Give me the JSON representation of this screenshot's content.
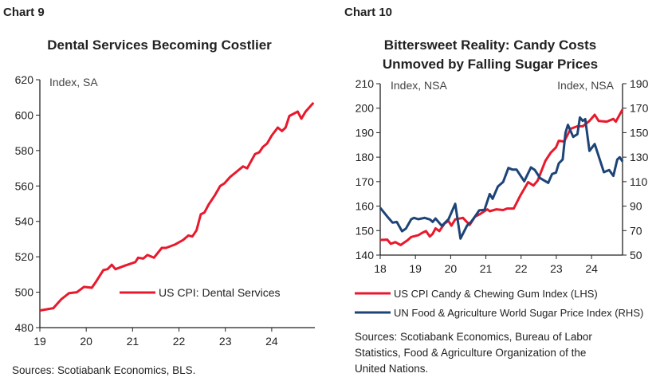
{
  "chart_data": [
    {
      "type": "line",
      "label": "Chart 9",
      "title": "Dental Services Becoming Costlier",
      "ylabel": "Index, SA",
      "ylim": [
        480,
        620
      ],
      "yticks": [
        "480",
        "500",
        "520",
        "540",
        "560",
        "580",
        "600",
        "620"
      ],
      "xlim": [
        19,
        24.93
      ],
      "xticks": [
        "19",
        "20",
        "21",
        "22",
        "23",
        "24"
      ],
      "grid": false,
      "legend_position": "center-right",
      "source": "Sources: Scotiabank Economics, BLS.",
      "series": [
        {
          "name": "US CPI: Dental Services",
          "color": "#e8192c",
          "x": [
            19.0,
            19.29,
            19.46,
            19.63,
            19.8,
            19.95,
            20.12,
            20.2,
            20.37,
            20.46,
            20.55,
            20.63,
            20.83,
            21.06,
            21.12,
            21.23,
            21.32,
            21.46,
            21.63,
            21.72,
            21.92,
            22.09,
            22.2,
            22.29,
            22.38,
            22.47,
            22.55,
            22.64,
            22.78,
            22.89,
            22.98,
            23.1,
            23.24,
            23.38,
            23.47,
            23.64,
            23.73,
            23.81,
            23.9,
            24.0,
            24.13,
            24.22,
            24.3,
            24.38,
            24.56,
            24.64,
            24.73,
            24.9
          ],
          "y": [
            489.7,
            491,
            496,
            499.5,
            500,
            503,
            502.5,
            505.5,
            512.5,
            513,
            515.5,
            513,
            515,
            517,
            519.5,
            519,
            521,
            519.5,
            525,
            525,
            527,
            529.5,
            532,
            531.5,
            535,
            544,
            545,
            549.5,
            555,
            560,
            561.5,
            565,
            568,
            571,
            570,
            578,
            579,
            582,
            584,
            588.5,
            593,
            591,
            593,
            599.5,
            602,
            598,
            602,
            607
          ]
        }
      ]
    },
    {
      "type": "line",
      "label": "Chart 10",
      "title": [
        "Bittersweet Reality: Candy Costs",
        "Unmoved by Falling Sugar Prices"
      ],
      "ylabel": "Index, NSA",
      "y2label": "Index, NSA",
      "ylim": [
        140,
        210
      ],
      "yticks": [
        "140",
        "150",
        "160",
        "170",
        "180",
        "190",
        "200",
        "210"
      ],
      "y2lim": [
        50,
        190
      ],
      "y2ticks": [
        "50",
        "70",
        "90",
        "110",
        "130",
        "150",
        "170",
        "190"
      ],
      "xlim": [
        18,
        24.88
      ],
      "xticks": [
        "18",
        "19",
        "20",
        "21",
        "22",
        "23",
        "24"
      ],
      "grid": false,
      "legend_position": "bottom",
      "source": [
        "Sources: Scotiabank Economics, Bureau of Labor",
        "Statistics, Food & Agriculture Organization of the",
        "United Nations."
      ],
      "series": [
        {
          "name": "US CPI Candy & Chewing Gum Index (LHS)",
          "color": "#e8192c",
          "axis": "left",
          "x": [
            18.0,
            18.2,
            18.3,
            18.43,
            18.58,
            18.77,
            18.88,
            19.08,
            19.19,
            19.3,
            19.41,
            19.49,
            19.57,
            19.68,
            19.83,
            19.94,
            20.02,
            20.13,
            20.35,
            20.54,
            20.69,
            20.84,
            21.04,
            21.11,
            21.3,
            21.49,
            21.6,
            21.79,
            21.98,
            22.2,
            22.35,
            22.47,
            22.69,
            22.84,
            22.99,
            23.07,
            23.22,
            23.41,
            23.6,
            23.75,
            23.94,
            24.09,
            24.2,
            24.43,
            24.62,
            24.69,
            24.88
          ],
          "y": [
            146.2,
            146.3,
            144.6,
            145.3,
            144.1,
            146,
            147.4,
            148.1,
            149.1,
            149.8,
            147.6,
            148.7,
            150.9,
            149.8,
            153,
            153.9,
            152,
            154.6,
            155.2,
            152.3,
            155.7,
            156.8,
            158.7,
            157.9,
            158.7,
            158.4,
            159,
            159,
            164.4,
            169.8,
            168.4,
            170.4,
            178.5,
            181.8,
            184,
            186.7,
            186.4,
            191.6,
            192.6,
            192.6,
            194.8,
            197.3,
            194.8,
            194.5,
            195.6,
            194.5,
            199.5
          ]
        },
        {
          "name": "UN Food & Agriculture World Sugar Price Index (RHS)",
          "color": "#1d4477",
          "axis": "right",
          "x": [
            18.0,
            18.2,
            18.35,
            18.47,
            18.62,
            18.73,
            18.88,
            18.96,
            19.08,
            19.26,
            19.41,
            19.49,
            19.57,
            19.75,
            19.94,
            20.13,
            20.28,
            20.47,
            20.58,
            20.69,
            20.81,
            20.96,
            21.11,
            21.19,
            21.34,
            21.49,
            21.64,
            21.75,
            21.87,
            22.09,
            22.28,
            22.39,
            22.54,
            22.77,
            22.88,
            22.99,
            23.07,
            23.18,
            23.26,
            23.33,
            23.48,
            23.6,
            23.67,
            23.75,
            23.82,
            23.94,
            24.09,
            24.35,
            24.5,
            24.62,
            24.73,
            24.8,
            24.88
          ],
          "y": [
            88.6,
            81.5,
            76.5,
            77.1,
            69.5,
            71.7,
            79.3,
            80.4,
            79.3,
            80.4,
            79.1,
            77.1,
            79.9,
            73.9,
            79.3,
            91.9,
            63.5,
            74.3,
            77.1,
            81.5,
            86.5,
            86.9,
            99.9,
            96,
            106,
            109.7,
            121.2,
            119.9,
            119.9,
            110.3,
            121.6,
            119.5,
            112.9,
            109,
            116.2,
            117.3,
            124.9,
            128.1,
            149.8,
            156.4,
            146.6,
            148.8,
            162.4,
            159.6,
            161.1,
            135.1,
            140.7,
            117.7,
            119.5,
            114.7,
            128.1,
            129.9,
            126.4
          ]
        }
      ]
    }
  ]
}
